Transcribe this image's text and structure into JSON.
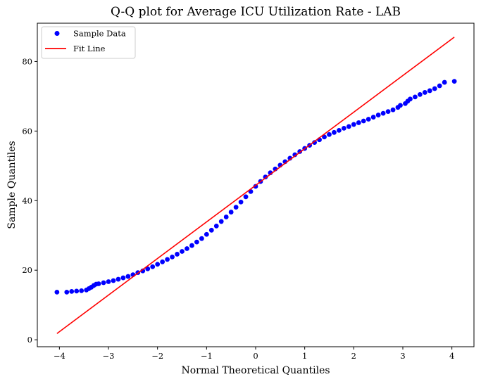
{
  "chart_data": {
    "type": "scatter",
    "title": "Q-Q plot for Average ICU Utilization Rate - LAB",
    "xlabel": "Normal Theoretical Quantiles",
    "ylabel": "Sample Quantiles",
    "xlim": [
      -4.45,
      4.45
    ],
    "ylim": [
      -2,
      91
    ],
    "x_ticks": [
      -4,
      -3,
      -2,
      -1,
      0,
      1,
      2,
      3,
      4
    ],
    "y_ticks": [
      0,
      20,
      40,
      60,
      80
    ],
    "grid": false,
    "legend_position": "top-left",
    "colors": {
      "sample": "#0000ff",
      "fit": "#ff0000"
    },
    "series": [
      {
        "name": "Sample Data",
        "kind": "scatter",
        "points": [
          [
            -4.05,
            13.7
          ],
          [
            -3.85,
            13.7
          ],
          [
            -3.75,
            13.9
          ],
          [
            -3.65,
            14.0
          ],
          [
            -3.55,
            14.1
          ],
          [
            -3.45,
            14.3
          ],
          [
            -3.4,
            14.7
          ],
          [
            -3.35,
            15.1
          ],
          [
            -3.3,
            15.6
          ],
          [
            -3.25,
            16.0
          ],
          [
            -3.2,
            16.1
          ],
          [
            -3.1,
            16.4
          ],
          [
            -3.0,
            16.7
          ],
          [
            -2.9,
            17.0
          ],
          [
            -2.8,
            17.4
          ],
          [
            -2.7,
            17.8
          ],
          [
            -2.6,
            18.2
          ],
          [
            -2.5,
            18.7
          ],
          [
            -2.4,
            19.3
          ],
          [
            -2.3,
            19.8
          ],
          [
            -2.2,
            20.4
          ],
          [
            -2.1,
            21.0
          ],
          [
            -2.0,
            21.7
          ],
          [
            -1.9,
            22.4
          ],
          [
            -1.8,
            23.1
          ],
          [
            -1.7,
            23.8
          ],
          [
            -1.6,
            24.6
          ],
          [
            -1.5,
            25.4
          ],
          [
            -1.4,
            26.2
          ],
          [
            -1.3,
            27.1
          ],
          [
            -1.2,
            28.1
          ],
          [
            -1.1,
            29.1
          ],
          [
            -1.0,
            30.3
          ],
          [
            -0.9,
            31.5
          ],
          [
            -0.8,
            32.7
          ],
          [
            -0.7,
            34.0
          ],
          [
            -0.6,
            35.3
          ],
          [
            -0.5,
            36.7
          ],
          [
            -0.4,
            38.1
          ],
          [
            -0.3,
            39.6
          ],
          [
            -0.2,
            41.1
          ],
          [
            -0.1,
            42.6
          ],
          [
            0.0,
            44.1
          ],
          [
            0.1,
            45.5
          ],
          [
            0.2,
            46.8
          ],
          [
            0.3,
            48.0
          ],
          [
            0.4,
            49.1
          ],
          [
            0.5,
            50.2
          ],
          [
            0.6,
            51.2
          ],
          [
            0.7,
            52.2
          ],
          [
            0.8,
            53.2
          ],
          [
            0.9,
            54.1
          ],
          [
            1.0,
            55.0
          ],
          [
            1.1,
            55.9
          ],
          [
            1.2,
            56.7
          ],
          [
            1.3,
            57.5
          ],
          [
            1.4,
            58.3
          ],
          [
            1.5,
            59.0
          ],
          [
            1.6,
            59.6
          ],
          [
            1.7,
            60.2
          ],
          [
            1.8,
            60.8
          ],
          [
            1.9,
            61.3
          ],
          [
            2.0,
            61.9
          ],
          [
            2.1,
            62.4
          ],
          [
            2.2,
            62.9
          ],
          [
            2.3,
            63.4
          ],
          [
            2.4,
            64.0
          ],
          [
            2.5,
            64.6
          ],
          [
            2.6,
            65.1
          ],
          [
            2.7,
            65.6
          ],
          [
            2.8,
            66.1
          ],
          [
            2.9,
            66.8
          ],
          [
            2.95,
            67.4
          ],
          [
            3.05,
            67.9
          ],
          [
            3.1,
            68.6
          ],
          [
            3.15,
            69.2
          ],
          [
            3.25,
            69.8
          ],
          [
            3.35,
            70.5
          ],
          [
            3.45,
            71.1
          ],
          [
            3.55,
            71.6
          ],
          [
            3.65,
            72.2
          ],
          [
            3.75,
            73.0
          ],
          [
            3.85,
            74.0
          ],
          [
            4.05,
            74.3
          ]
        ]
      },
      {
        "name": "Fit Line",
        "kind": "line",
        "points": [
          [
            -4.05,
            1.8
          ],
          [
            4.05,
            87.0
          ]
        ]
      }
    ]
  }
}
